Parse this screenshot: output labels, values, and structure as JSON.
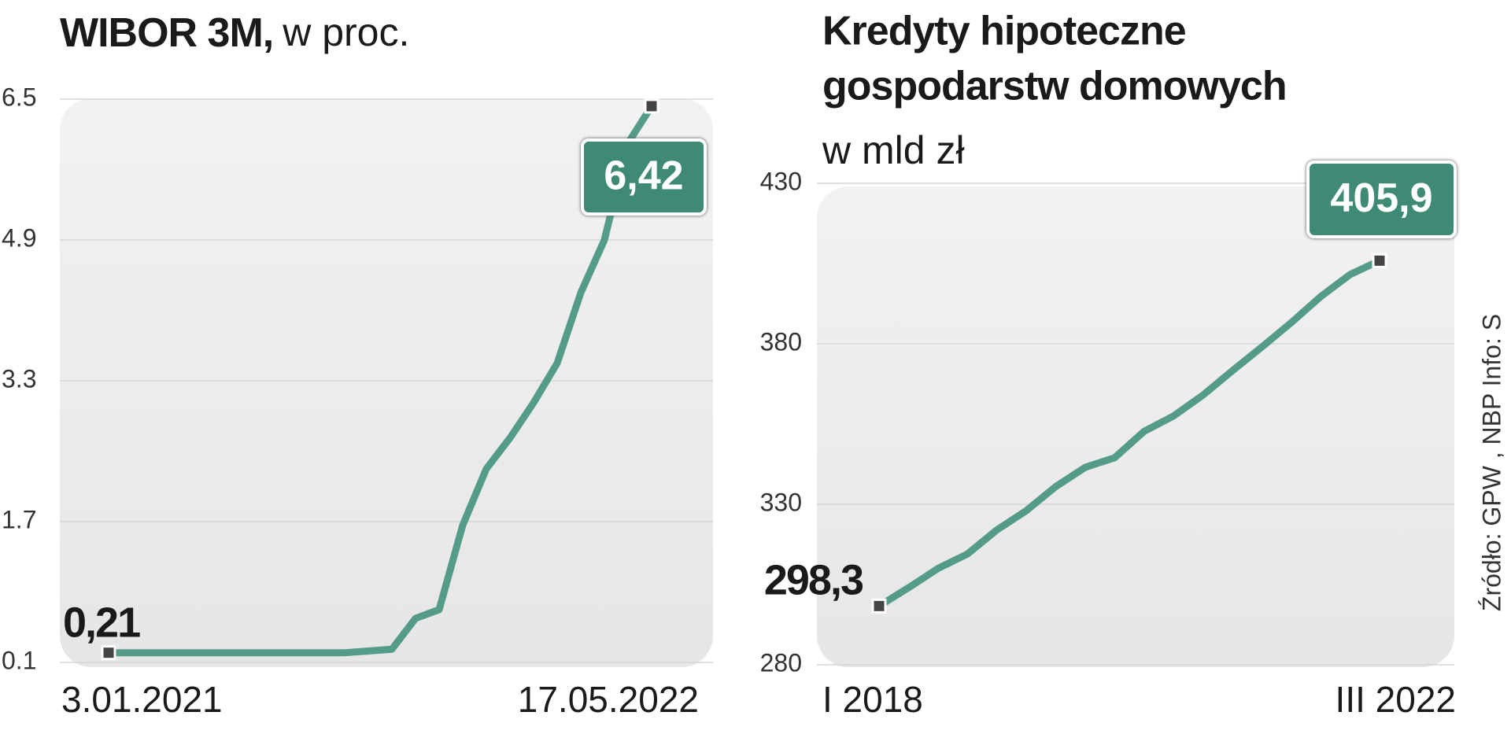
{
  "chart_data": [
    {
      "type": "line",
      "title": "WIBOR 3M,",
      "subtitle": "w proc.",
      "categories": [
        "3.01.2021",
        null,
        null,
        null,
        null,
        null,
        null,
        null,
        null,
        null,
        null,
        null,
        null,
        null,
        null,
        null,
        null,
        null,
        null,
        null,
        null,
        null,
        null,
        "17.05.2022"
      ],
      "values": [
        0.21,
        0.21,
        0.21,
        0.21,
        0.21,
        0.21,
        0.21,
        0.21,
        0.21,
        0.21,
        0.21,
        0.23,
        0.25,
        0.6,
        0.7,
        1.66,
        2.3,
        2.65,
        3.05,
        3.5,
        4.3,
        4.9,
        6.0,
        6.42
      ],
      "value_labels": [
        "0,21",
        null,
        null,
        null,
        null,
        null,
        null,
        null,
        null,
        null,
        null,
        null,
        null,
        null,
        null,
        null,
        null,
        null,
        null,
        null,
        null,
        null,
        null,
        "6,42"
      ],
      "color": "#559c88",
      "ylim": [
        0.1,
        6.5
      ],
      "yticks": [
        0.1,
        1.7,
        3.3,
        4.9,
        6.5
      ],
      "grid": true
    },
    {
      "type": "line",
      "title": [
        "Kredyty hipoteczne",
        "gospodarstw domowych"
      ],
      "subtitle": "w mld zł",
      "categories": [
        "I 2018",
        null,
        null,
        null,
        null,
        null,
        null,
        null,
        null,
        null,
        null,
        null,
        null,
        null,
        null,
        null,
        null,
        "III 2022"
      ],
      "values": [
        298.3,
        304,
        310,
        314.5,
        322,
        328,
        335.5,
        341.5,
        344.5,
        352.7,
        357.5,
        364,
        371.6,
        379,
        386.6,
        394.7,
        401.6,
        405.9
      ],
      "value_labels": [
        "298,3",
        null,
        null,
        null,
        null,
        null,
        null,
        null,
        null,
        null,
        null,
        null,
        null,
        null,
        null,
        null,
        null,
        "405,9"
      ],
      "color": "#559c88",
      "ylim": [
        280,
        430
      ],
      "yticks": [
        280,
        330,
        380,
        430
      ],
      "grid": true,
      "source": "Źródło: GPW , NBP  Info: S"
    }
  ]
}
